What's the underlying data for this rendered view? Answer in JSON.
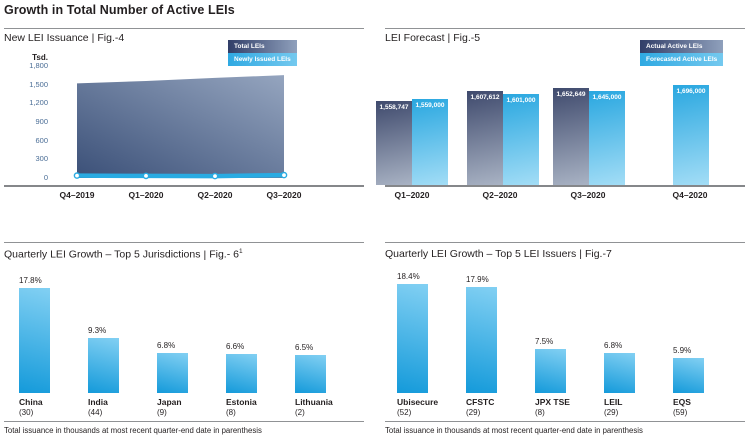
{
  "page": {
    "header": "Growth in Total Number of Active LEIs"
  },
  "ui": {
    "title_separator": "|"
  },
  "colors": {
    "accent_cyan": "#29abe2",
    "navy_dark": "#3e4a6d",
    "navy_light": "#a9b3c4",
    "cyan_gradient_light": "#a3ddf6",
    "bar_cyan_top": "#82d0f3",
    "bar_cyan_bottom": "#149ada",
    "tick_blue": "#4a6d96",
    "text": "#231f20",
    "rule_gray": "#909295"
  },
  "chart_data": [
    {
      "id": "fig4",
      "type": "area",
      "title": "New LEI Issuance",
      "fig_label": "Fig.-4",
      "ylabel": "Tsd.",
      "ylim": [
        0,
        1800
      ],
      "yticks": [
        1800,
        1500,
        1200,
        900,
        600,
        300,
        0
      ],
      "categories": [
        "Q4–2019",
        "Q1–2020",
        "Q2–2020",
        "Q3–2020"
      ],
      "series": [
        {
          "name": "Total LEIs",
          "values": [
            1520,
            1559,
            1608,
            1653
          ]
        },
        {
          "name": "Newly Issued LEIs",
          "values": [
            39,
            33,
            31,
            46
          ]
        }
      ],
      "legend": [
        "Total LEIs",
        "Newly Issued LEIs"
      ],
      "legend_position": "top-right",
      "grid": false
    },
    {
      "id": "fig5",
      "type": "bar",
      "title": "LEI Forecast",
      "fig_label": "Fig.-5",
      "categories": [
        "Q1–2020",
        "Q2–2020",
        "Q3–2020",
        "Q4–2020"
      ],
      "series": [
        {
          "name": "Actual Active LEIs",
          "values": [
            1558747,
            1607612,
            1652649,
            null
          ]
        },
        {
          "name": "Forecasted Active LEIs",
          "values": [
            1559000,
            1601000,
            1645000,
            1696000
          ]
        }
      ],
      "legend": [
        "Actual Active LEIs",
        "Forecasted Active LEIs"
      ],
      "legend_position": "top-right",
      "value_labels": true
    },
    {
      "id": "fig6",
      "type": "bar",
      "title": "Quarterly LEI Growth – Top 5 Jurisdictions",
      "fig_label": "Fig.- 6",
      "fig_superscript": "1",
      "categories": [
        "China",
        "India",
        "Japan",
        "Estonia",
        "Lithuania"
      ],
      "issuance_counts": [
        30,
        44,
        9,
        8,
        2
      ],
      "values": [
        17.8,
        9.3,
        6.8,
        6.6,
        6.5
      ],
      "unit": "%",
      "footnote": "Total issuance in thousands at most recent quarter-end date in parenthesis"
    },
    {
      "id": "fig7",
      "type": "bar",
      "title": "Quarterly LEI Growth – Top 5 LEI Issuers",
      "fig_label": "Fig.-7",
      "categories": [
        "Ubisecure",
        "CFSTC",
        "JPX TSE",
        "LEIL",
        "EQS"
      ],
      "issuance_counts": [
        52,
        29,
        8,
        29,
        59
      ],
      "values": [
        18.4,
        17.9,
        7.5,
        6.8,
        5.9
      ],
      "unit": "%",
      "footnote": "Total issuance in thousands at most recent quarter-end date in parenthesis"
    }
  ]
}
